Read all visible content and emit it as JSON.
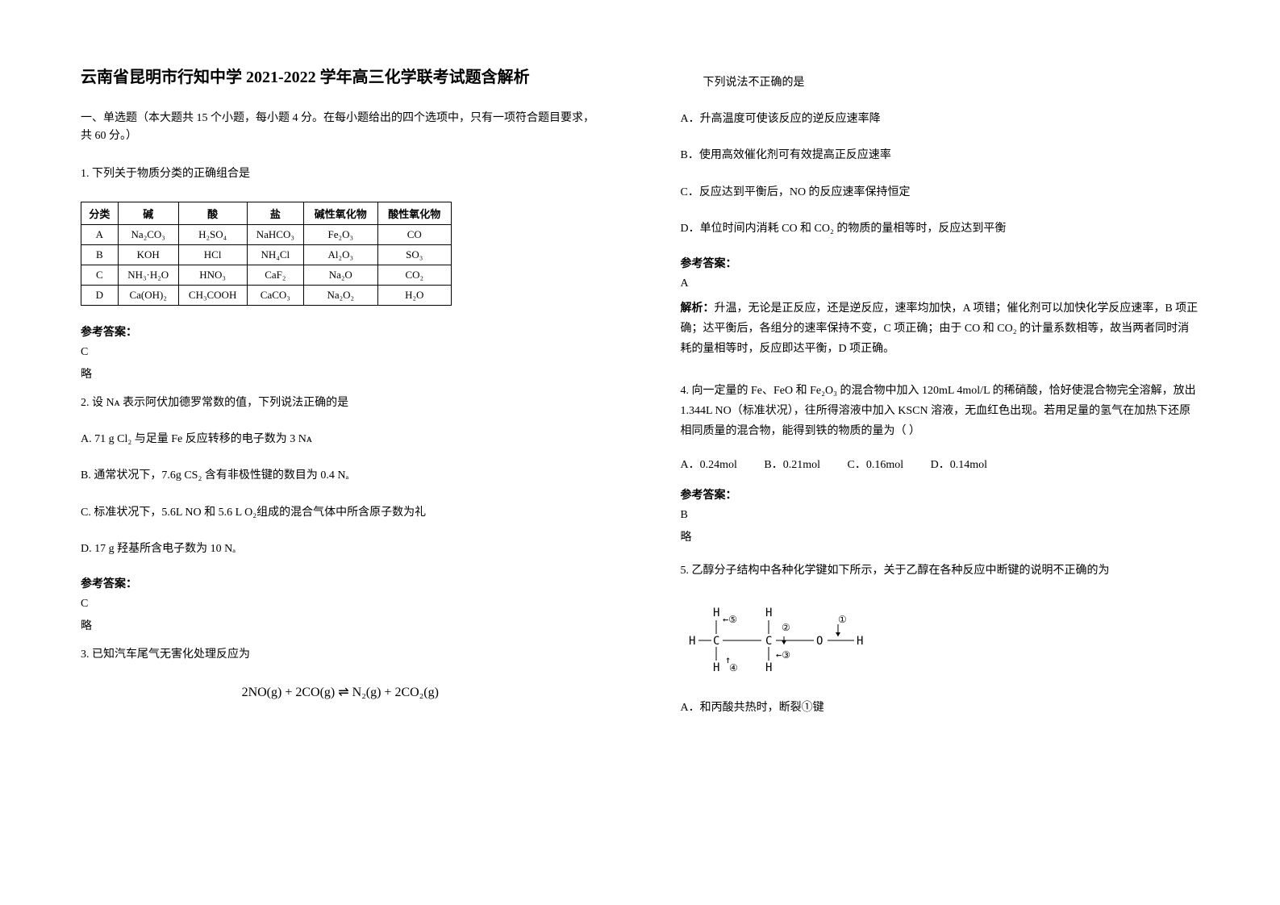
{
  "left": {
    "title": "云南省昆明市行知中学 2021-2022 学年高三化学联考试题含解析",
    "section_header": "一、单选题（本大题共 15 个小题，每小题 4 分。在每小题给出的四个选项中，只有一项符合题目要求，共 60 分。）",
    "q1": {
      "prompt": "1. 下列关于物质分类的正确组合是",
      "table": {
        "headers": [
          "分类",
          "碱",
          "酸",
          "盐",
          "碱性氧化物",
          "酸性氧化物"
        ],
        "rows": [
          [
            "A",
            "Na₂CO₃",
            "H₂SO₄",
            "NaHCO₃",
            "Fe₂O₃",
            "CO"
          ],
          [
            "B",
            "KOH",
            "HCl",
            "NH₄Cl",
            "Al₂O₃",
            "SO₃"
          ],
          [
            "C",
            "NH₃·H₂O",
            "HNO₃",
            "CaF₂",
            "Na₂O",
            "CO₂"
          ],
          [
            "D",
            "Ca(OH)₂",
            "CH₃COOH",
            "CaCO₃",
            "Na₂O₂",
            "H₂O"
          ]
        ]
      },
      "answer_label": "参考答案：",
      "answer": "C",
      "note": "略"
    },
    "q2": {
      "prompt": "2. 设 Nᴀ 表示阿伏加德罗常数的值，下列说法正确的是",
      "options": [
        "A. 71 g Cl₂ 与足量 Fe 反应转移的电子数为 3 Nᴀ",
        "B. 通常状况下，7.6g CS₂ 含有非极性键的数目为 0.4 Nₐ",
        "C. 标准状况下，5.6L NO 和 5.6 L O₂组成的混合气体中所含原子数为礼",
        "D. 17 g 羟基所含电子数为 10 Nₐ"
      ],
      "answer_label": "参考答案：",
      "answer": "C",
      "note": "略"
    },
    "q3": {
      "prompt": "3. 已知汽车尾气无害化处理反应为",
      "equation": "2NO(g) + 2CO(g) ⇌ N₂(g) + 2CO₂(g)"
    }
  },
  "right": {
    "q3_continued": {
      "sub_prompt": "下列说法不正确的是",
      "options": [
        "A．升高温度可使该反应的逆反应速率降",
        "B．使用高效催化剂可有效提高正反应速率",
        "C．反应达到平衡后，NO 的反应速率保持恒定",
        "D．单位时间内消耗 CO 和 CO₂ 的物质的量相等时，反应达到平衡"
      ],
      "answer_label": "参考答案：",
      "answer": "A",
      "explanation_label": "解析：",
      "explanation": "升温，无论是正反应，还是逆反应，速率均加快，A 项错；催化剂可以加快化学反应速率，B 项正确；达平衡后，各组分的速率保持不变，C 项正确；由于 CO 和 CO₂ 的计量系数相等，故当两者同时消耗的量相等时，反应即达平衡，D 项正确。"
    },
    "q4": {
      "prompt": "4. 向一定量的 Fe、FeO 和 Fe₂O₃ 的混合物中加入 120mL 4mol/L 的稀硝酸，恰好使混合物完全溶解，放出 1.344L NO（标准状况），往所得溶液中加入 KSCN 溶液，无血红色出现。若用足量的氢气在加热下还原相同质量的混合物，能得到铁的物质的量为（  ）",
      "options": {
        "A": "A．0.24mol",
        "B": "B．0.21mol",
        "C": "C．0.16mol",
        "D": "D．0.14mol"
      },
      "answer_label": "参考答案：",
      "answer": "B",
      "note": "略"
    },
    "q5": {
      "prompt": "5. 乙醇分子结构中各种化学键如下所示，关于乙醇在各种反应中断键的说明不正确的为",
      "option_a": "A．和丙酸共热时，断裂①键"
    }
  },
  "colors": {
    "background": "#ffffff",
    "text": "#000000",
    "border": "#000000"
  }
}
